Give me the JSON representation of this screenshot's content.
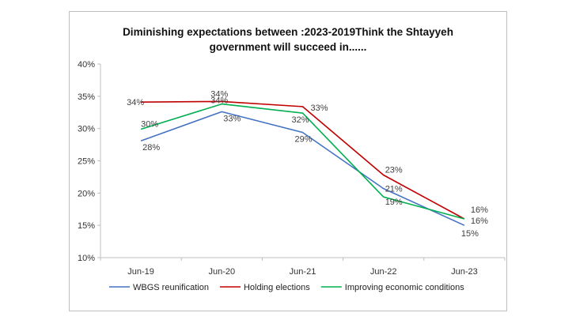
{
  "chart_data": {
    "type": "line",
    "title_line1": "Diminishing expectations between  :2023-2019Think the Shtayyeh",
    "title_line2": "government will succeed in......",
    "categories": [
      "Jun-19",
      "Jun-20",
      "Jun-21",
      "Jun-22",
      "Jun-23"
    ],
    "y_ticks": [
      "10%",
      "15%",
      "20%",
      "25%",
      "30%",
      "35%",
      "40%"
    ],
    "ylim": [
      10,
      40
    ],
    "grid": false,
    "legend_position": "bottom",
    "series": [
      {
        "name": "WBGS reunification",
        "color": "#4472c4",
        "values": [
          28.1,
          32.6,
          29.4,
          20.7,
          15.0
        ],
        "labels": [
          "28%",
          "33%",
          "29%",
          "21%",
          "15%"
        ]
      },
      {
        "name": "Holding elections",
        "color": "#c00000",
        "values": [
          34.1,
          34.2,
          33.4,
          22.8,
          16.0
        ],
        "labels": [
          "34%",
          "34%",
          "33%",
          "23%",
          "16%"
        ]
      },
      {
        "name": "Improving economic conditions",
        "color": "#00b050",
        "values": [
          29.9,
          33.8,
          32.4,
          19.4,
          16.0
        ],
        "labels": [
          "30%",
          "34%",
          "32%",
          "19%",
          "16%"
        ]
      }
    ]
  }
}
